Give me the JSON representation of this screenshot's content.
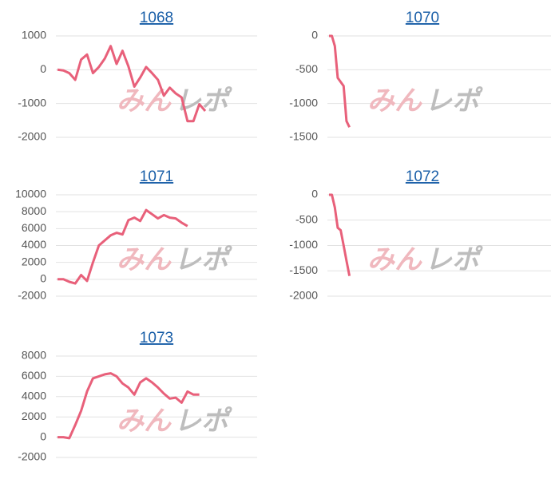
{
  "watermark": [
    "みん",
    "レポ"
  ],
  "chart_data": [
    {
      "type": "line",
      "title": "1068",
      "color": "#e8607a",
      "grid": true,
      "ylim": [
        -2000,
        1000
      ],
      "yticks": [
        -2000,
        -1000,
        0,
        1000
      ],
      "values": [
        0,
        -20,
        -100,
        -300,
        300,
        450,
        -100,
        80,
        330,
        700,
        170,
        560,
        100,
        -500,
        -230,
        80,
        -100,
        -300,
        -770,
        -530,
        -700,
        -820,
        -1520,
        -1520,
        -1020,
        -1220
      ]
    },
    {
      "type": "line",
      "title": "1070",
      "color": "#e8607a",
      "grid": true,
      "ylim": [
        -1500,
        0
      ],
      "yticks": [
        -1500,
        -1000,
        -500,
        0
      ],
      "values": [
        0,
        0,
        -150,
        -620,
        -680,
        -740,
        -1260,
        -1350
      ]
    },
    {
      "type": "line",
      "title": "1071",
      "color": "#e8607a",
      "grid": true,
      "ylim": [
        -2000,
        10000
      ],
      "yticks": [
        -2000,
        0,
        2000,
        4000,
        6000,
        8000,
        10000
      ],
      "values": [
        0,
        0,
        -300,
        -500,
        500,
        -200,
        2000,
        4000,
        4600,
        5200,
        5500,
        5300,
        7000,
        7300,
        6900,
        8200,
        7700,
        7200,
        7600,
        7300,
        7200,
        6700,
        6300
      ]
    },
    {
      "type": "line",
      "title": "1072",
      "color": "#e8607a",
      "grid": true,
      "ylim": [
        -2000,
        0
      ],
      "yticks": [
        -2000,
        -1500,
        -1000,
        -500,
        0
      ],
      "values": [
        0,
        0,
        -250,
        -650,
        -700,
        -1000,
        -1300,
        -1600
      ]
    },
    {
      "type": "line",
      "title": "1073",
      "color": "#e8607a",
      "grid": true,
      "ylim": [
        -2000,
        8000
      ],
      "yticks": [
        -2000,
        0,
        2000,
        4000,
        6000,
        8000
      ],
      "values": [
        0,
        0,
        -100,
        1200,
        2600,
        4500,
        5800,
        6000,
        6200,
        6300,
        6000,
        5300,
        4900,
        4200,
        5400,
        5800,
        5400,
        4900,
        4300,
        3800,
        3900,
        3400,
        4500,
        4200,
        4200
      ]
    }
  ]
}
